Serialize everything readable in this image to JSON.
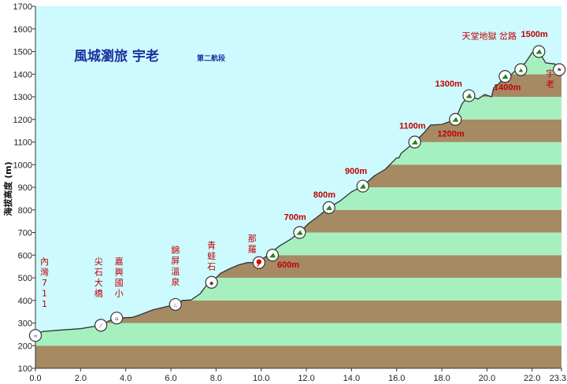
{
  "chart_data": {
    "type": "area",
    "title": "風城瀏旅 宇老",
    "subtitle": "第二航段",
    "ylabel": "海拔高度 (m)",
    "xlabel": "",
    "xlim": [
      0,
      23.3
    ],
    "ylim": [
      100,
      1700
    ],
    "x_ticks": [
      "0.0",
      "2.0",
      "4.0",
      "6.0",
      "8.0",
      "10.0",
      "12.0",
      "14.0",
      "16.0",
      "18.0",
      "20.0",
      "22.0",
      "23.3"
    ],
    "x_tick_values": [
      0,
      2,
      4,
      6,
      8,
      10,
      12,
      14,
      16,
      18,
      20,
      22,
      23.3
    ],
    "y_ticks": [
      "100",
      "200",
      "300",
      "400",
      "500",
      "600",
      "700",
      "800",
      "900",
      "1000",
      "1100",
      "1200",
      "1300",
      "1400",
      "1500",
      "1600",
      "1700"
    ],
    "y_tick_values": [
      100,
      200,
      300,
      400,
      500,
      600,
      700,
      800,
      900,
      1000,
      1100,
      1200,
      1300,
      1400,
      1500,
      1600,
      1700
    ],
    "band_colors": [
      "#a68a64",
      "#a6f0c0"
    ],
    "sky_color": "#ccfaff",
    "profile": {
      "x": [
        0,
        0.3,
        1.0,
        2.0,
        2.9,
        3.3,
        3.7,
        4.3,
        4.6,
        5.2,
        5.7,
        6.2,
        6.5,
        6.9,
        7.3,
        7.6,
        7.8,
        8.2,
        8.6,
        9.0,
        9.4,
        9.8,
        10.0,
        10.3,
        10.8,
        11.3,
        11.7,
        12.1,
        12.5,
        13.0,
        13.5,
        14.0,
        14.5,
        15.0,
        15.5,
        16.0,
        16.1,
        16.2,
        16.5,
        16.8,
        17.2,
        17.5,
        18.0,
        18.6,
        18.9,
        19.2,
        19.6,
        19.9,
        20.2,
        20.3,
        20.5,
        20.8,
        21.1,
        21.4,
        21.7,
        22.0,
        22.3,
        22.6,
        23.0,
        23.3
      ],
      "y": [
        245,
        262,
        268,
        275,
        290,
        312,
        322,
        325,
        335,
        358,
        370,
        382,
        400,
        402,
        430,
        470,
        480,
        520,
        540,
        557,
        567,
        567,
        580,
        600,
        640,
        670,
        700,
        740,
        770,
        810,
        840,
        880,
        905,
        950,
        980,
        1030,
        1030,
        1050,
        1075,
        1100,
        1140,
        1175,
        1178,
        1200,
        1270,
        1305,
        1290,
        1310,
        1300,
        1340,
        1355,
        1390,
        1400,
        1430,
        1450,
        1495,
        1500,
        1450,
        1445,
        1420
      ]
    },
    "markers": [
      {
        "x": 0.0,
        "y": 245,
        "icon": "start",
        "color": "#2233cc"
      },
      {
        "x": 2.9,
        "y": 290,
        "icon": "bridge",
        "color": "#444444"
      },
      {
        "x": 3.6,
        "y": 322,
        "icon": "school",
        "color": "#444444"
      },
      {
        "x": 6.2,
        "y": 382,
        "icon": "hotspring",
        "color": "#444444"
      },
      {
        "x": 7.8,
        "y": 480,
        "icon": "rock",
        "color": "#444444"
      },
      {
        "x": 9.9,
        "y": 567,
        "icon": "pin",
        "color": "#dd0000"
      },
      {
        "x": 10.5,
        "y": 600,
        "icon": "climb",
        "color": "#1a8a1a"
      },
      {
        "x": 11.7,
        "y": 700,
        "icon": "climb",
        "color": "#1a8a1a"
      },
      {
        "x": 13.0,
        "y": 810,
        "icon": "climb",
        "color": "#1a8a1a"
      },
      {
        "x": 14.5,
        "y": 905,
        "icon": "climb",
        "color": "#1a8a1a"
      },
      {
        "x": 16.8,
        "y": 1100,
        "icon": "climb",
        "color": "#1a8a1a"
      },
      {
        "x": 18.6,
        "y": 1200,
        "icon": "climb",
        "color": "#1a8a1a"
      },
      {
        "x": 19.2,
        "y": 1305,
        "icon": "climb",
        "color": "#1a8a1a"
      },
      {
        "x": 20.8,
        "y": 1390,
        "icon": "climb",
        "color": "#1a8a1a"
      },
      {
        "x": 21.5,
        "y": 1420,
        "icon": "summit",
        "color": "#1a8a1a"
      },
      {
        "x": 22.3,
        "y": 1500,
        "icon": "climb",
        "color": "#1a8a1a"
      },
      {
        "x": 23.2,
        "y": 1420,
        "icon": "finish",
        "color": "#444444"
      }
    ],
    "place_labels": [
      {
        "text": "內灣711",
        "x": 0.4,
        "y": 560
      },
      {
        "text": "尖石大橋",
        "x": 2.8,
        "y": 560
      },
      {
        "text": "嘉興國小",
        "x": 3.7,
        "y": 560
      },
      {
        "text": "錦屏溫泉",
        "x": 6.2,
        "y": 610
      },
      {
        "text": "青蛙石",
        "x": 7.8,
        "y": 630
      },
      {
        "text": "那羅",
        "x": 9.6,
        "y": 660
      },
      {
        "text": "天堂地獄 岔路",
        "x": 20.1,
        "y": 1555,
        "horizontal": true
      },
      {
        "text": "宇老",
        "x": 22.8,
        "y": 1390
      }
    ],
    "altitude_labels": [
      {
        "text": "600m",
        "x": 11.2,
        "y": 545
      },
      {
        "text": "700m",
        "x": 11.5,
        "y": 755
      },
      {
        "text": "800m",
        "x": 12.8,
        "y": 855
      },
      {
        "text": "900m",
        "x": 14.2,
        "y": 960
      },
      {
        "text": "1100m",
        "x": 16.7,
        "y": 1160
      },
      {
        "text": "1200m",
        "x": 18.4,
        "y": 1125
      },
      {
        "text": "1300m",
        "x": 18.3,
        "y": 1345
      },
      {
        "text": "1400m",
        "x": 20.9,
        "y": 1330
      },
      {
        "text": "1500m",
        "x": 22.1,
        "y": 1565
      }
    ]
  }
}
